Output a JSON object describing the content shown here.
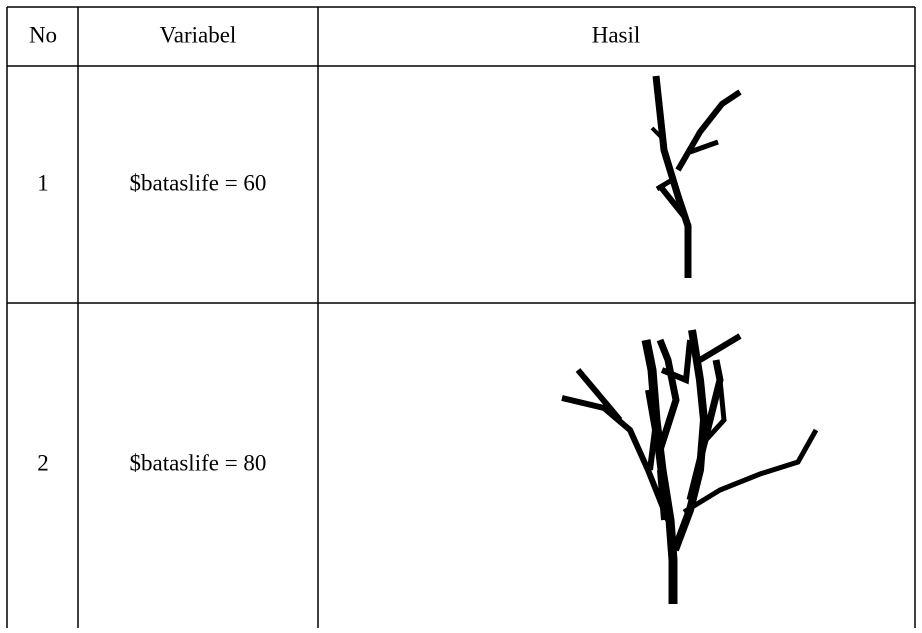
{
  "table": {
    "header": [
      "No",
      "Variabel",
      "Hasil"
    ],
    "rows": [
      [
        "1",
        "$bataslife = 60"
      ],
      [
        "2",
        "$bataslife = 80"
      ]
    ]
  }
}
